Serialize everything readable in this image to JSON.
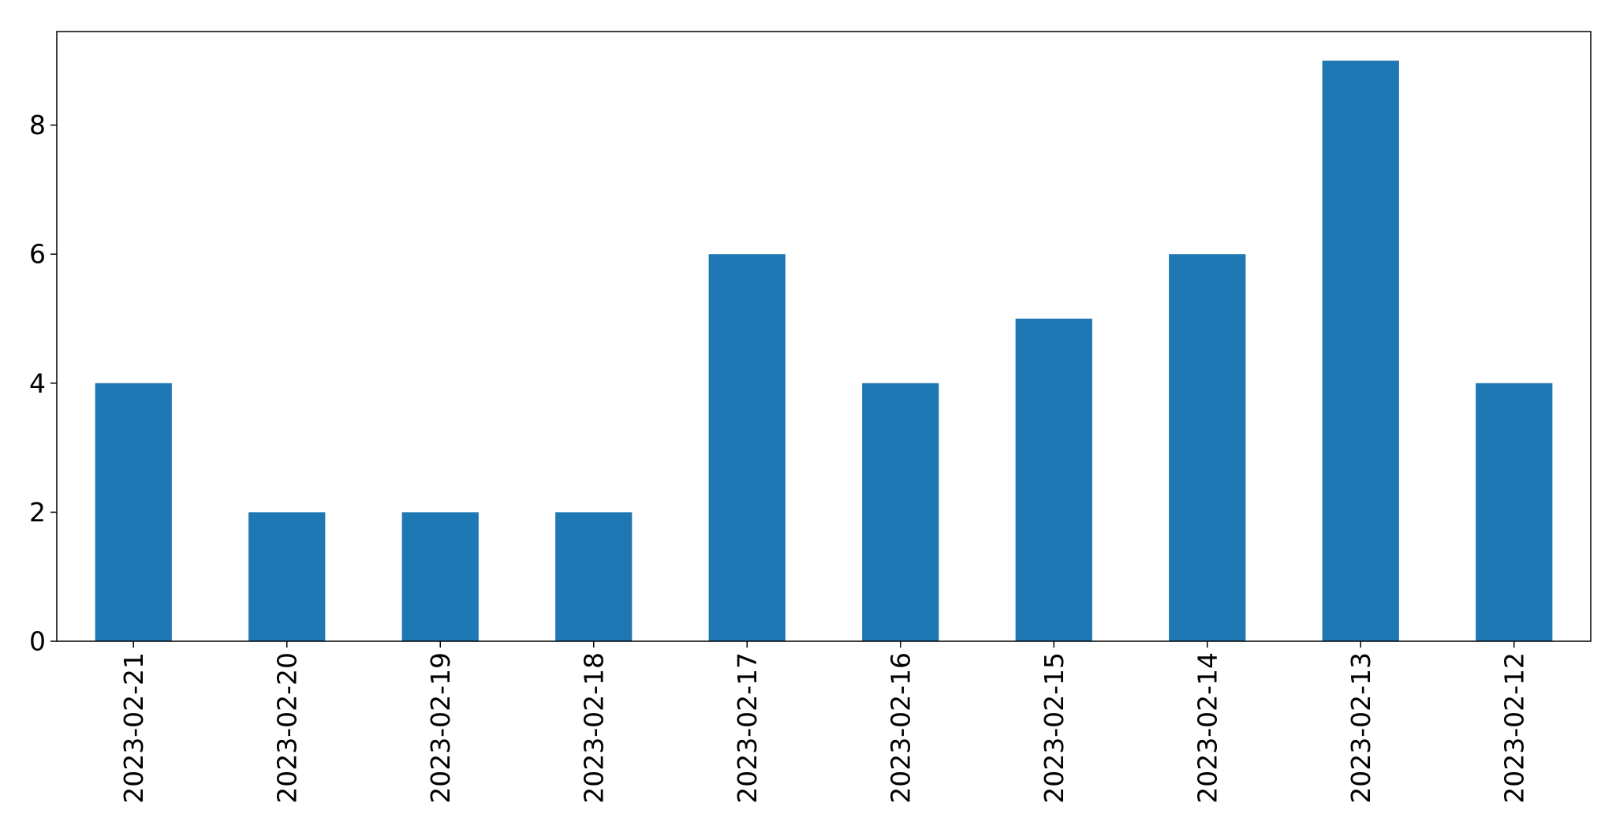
{
  "chart_data": {
    "type": "bar",
    "title": "",
    "xlabel": "",
    "ylabel": "",
    "categories": [
      "2023-02-21",
      "2023-02-20",
      "2023-02-19",
      "2023-02-18",
      "2023-02-17",
      "2023-02-16",
      "2023-02-15",
      "2023-02-14",
      "2023-02-13",
      "2023-02-12"
    ],
    "values": [
      4,
      2,
      2,
      2,
      6,
      4,
      5,
      6,
      9,
      4
    ],
    "ylim": [
      0,
      9.45
    ],
    "yticks": [
      0,
      2,
      4,
      6,
      8
    ],
    "grid": false,
    "legend": "none",
    "bar_color": "#1f77b4"
  }
}
